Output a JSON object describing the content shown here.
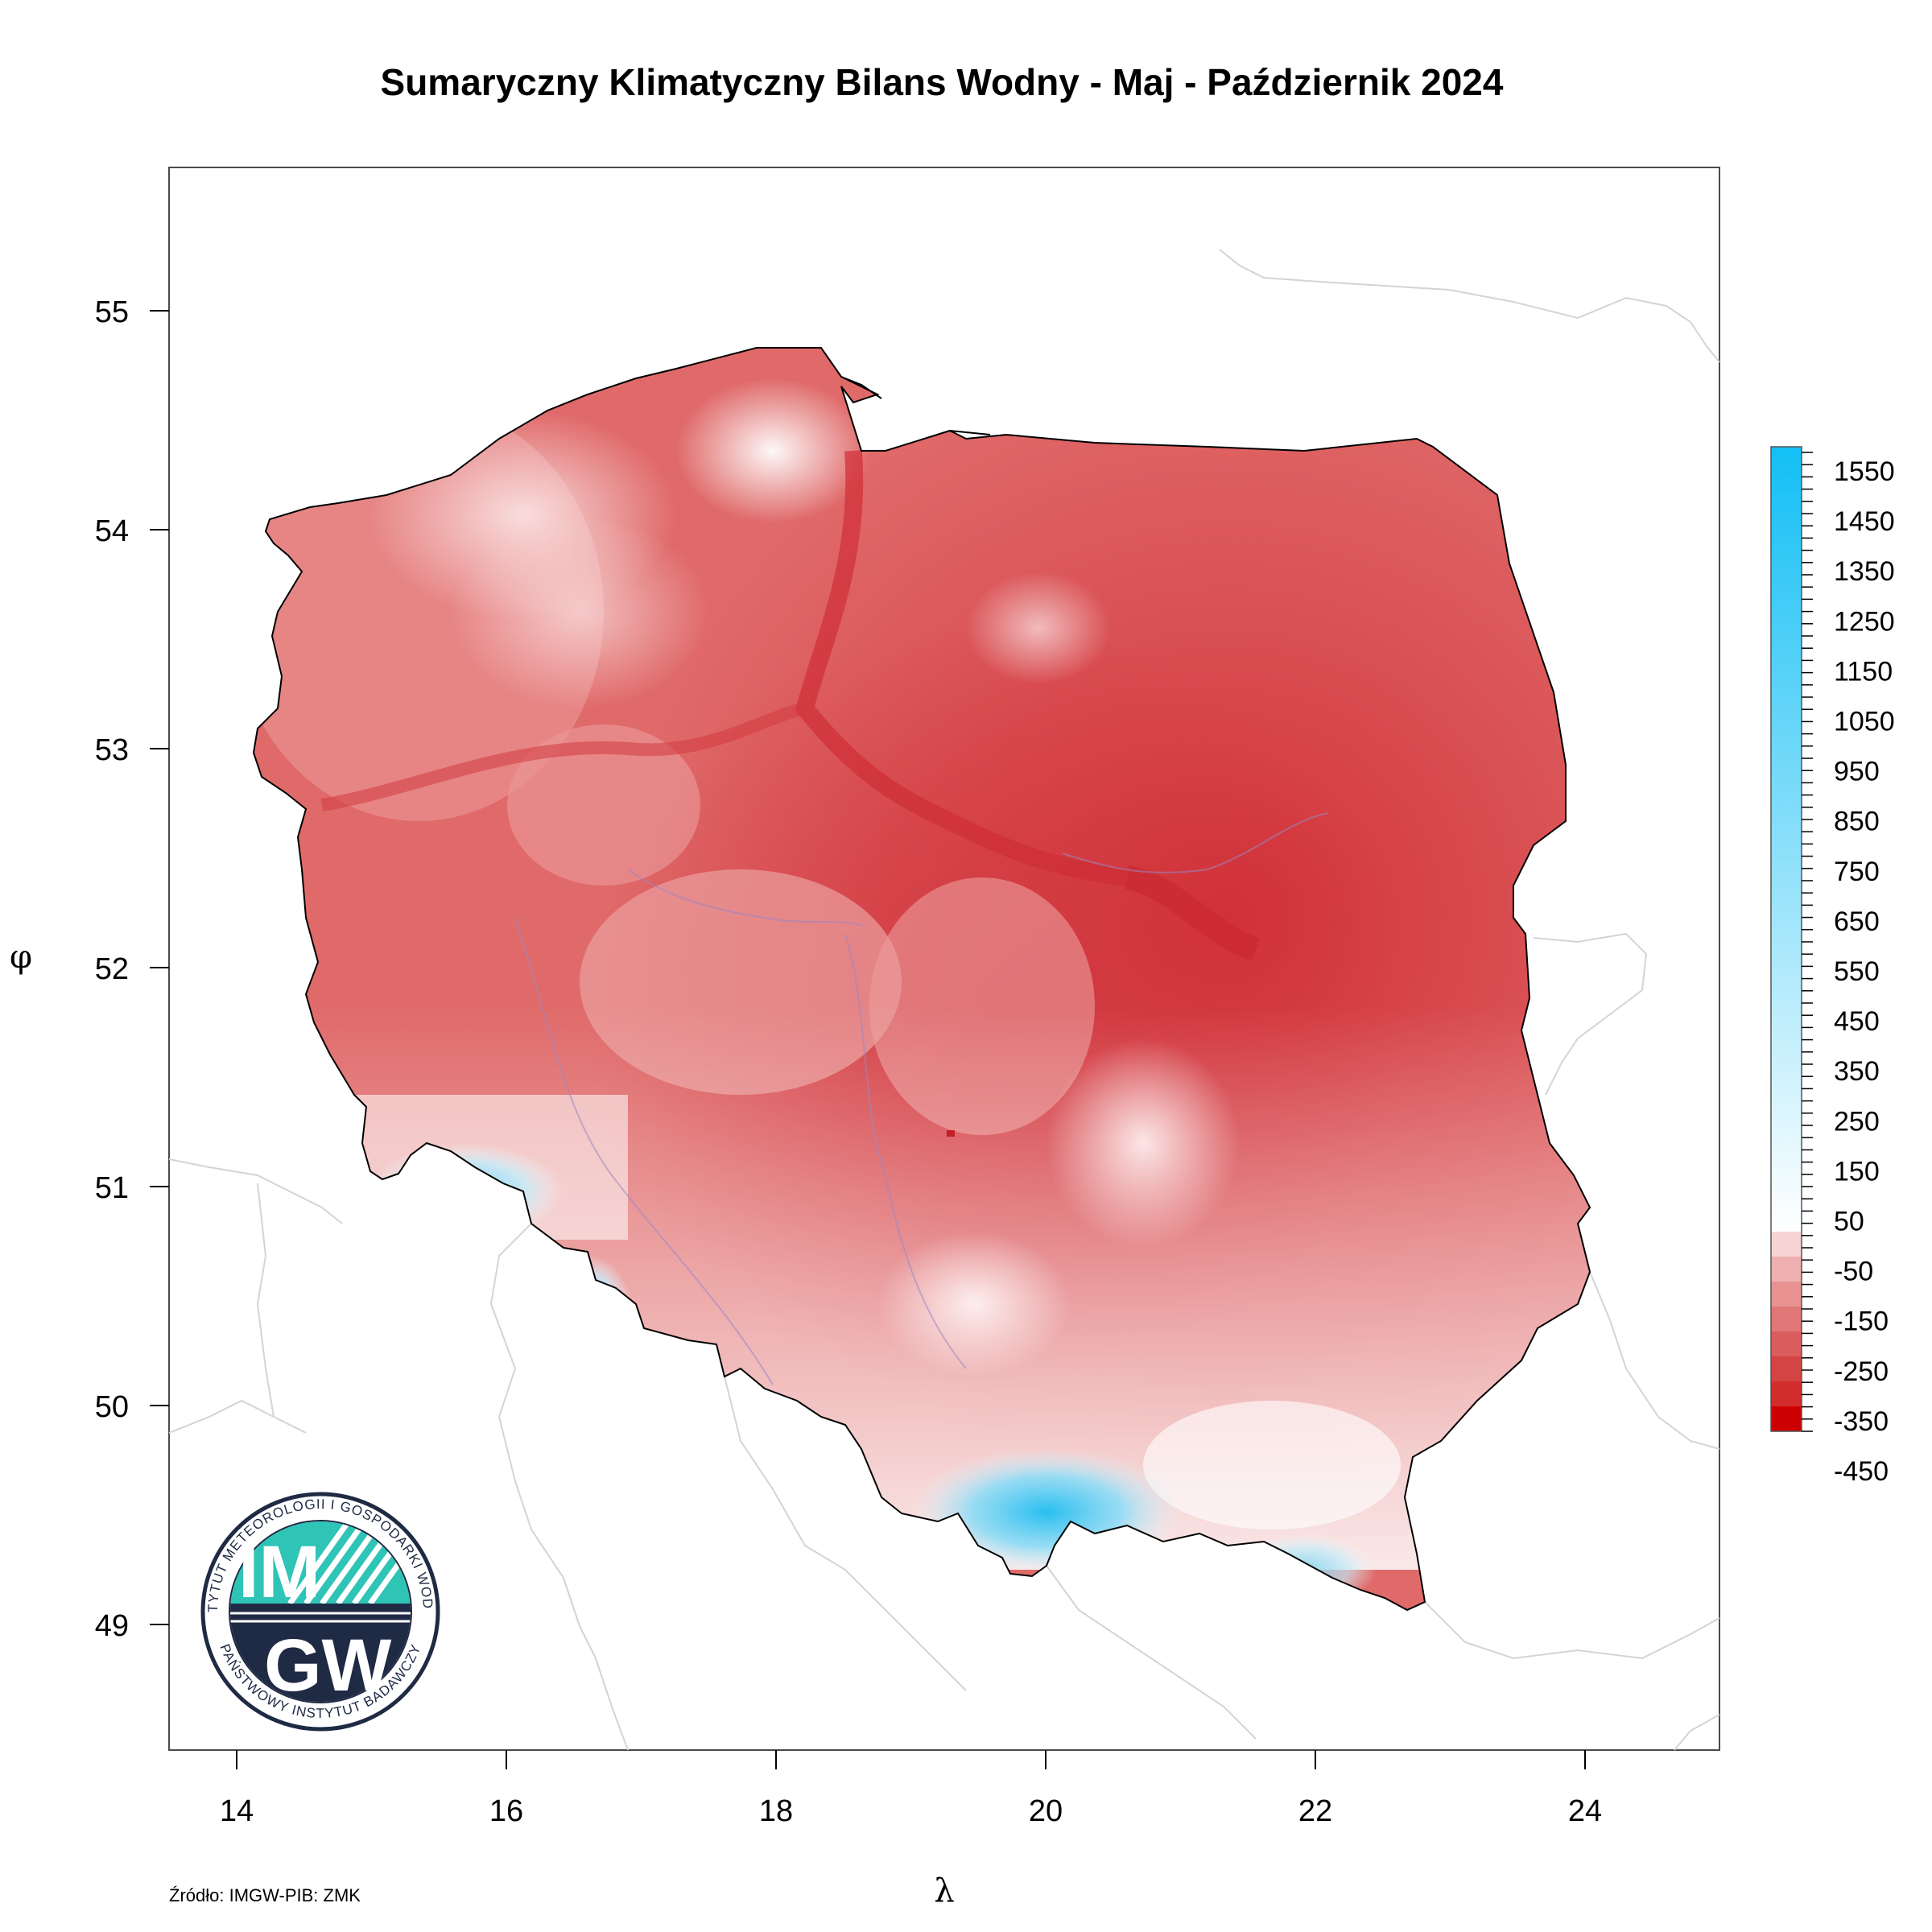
{
  "title": "Sumaryczny Klimatyczny Bilans Wodny - Maj - Październik 2024",
  "source": "Źródło: IMGW-PIB: ZMK",
  "axes": {
    "x_label": "λ",
    "y_label": "φ",
    "x_ticks": [
      "14",
      "16",
      "18",
      "20",
      "22",
      "24"
    ],
    "y_ticks": [
      "55",
      "54",
      "53",
      "52",
      "51",
      "50",
      "49"
    ],
    "xlim": [
      13.5,
      25.0
    ],
    "ylim": [
      48.45,
      55.65
    ]
  },
  "legend": {
    "labels": [
      "1550",
      "1450",
      "1350",
      "1250",
      "1150",
      "1050",
      "950",
      "850",
      "750",
      "650",
      "550",
      "450",
      "350",
      "250",
      "150",
      "50",
      "-50",
      "-150",
      "-250",
      "-350",
      "-450"
    ],
    "positive_color": "#13bff5",
    "zero_color": "#ffffff",
    "negative_color": "#cc0000"
  },
  "logo": {
    "letters_top": "IM",
    "letters_bottom": "GW",
    "ring_text_top": "INSTYTUT METEOROLOGII I GOSPODARKI WODNEJ",
    "ring_text_bottom": "PAŃSTWOWY INSTYTUT BADAWCZY"
  },
  "colors": {
    "deep_red": "#d2323a",
    "mid_red": "#e06666",
    "light_red": "#ec9a9a",
    "pale_red": "#f5c9c9",
    "snow_blue": "#69d1f2",
    "teal": "#2ec4b6",
    "navy": "#1f2a44"
  }
}
